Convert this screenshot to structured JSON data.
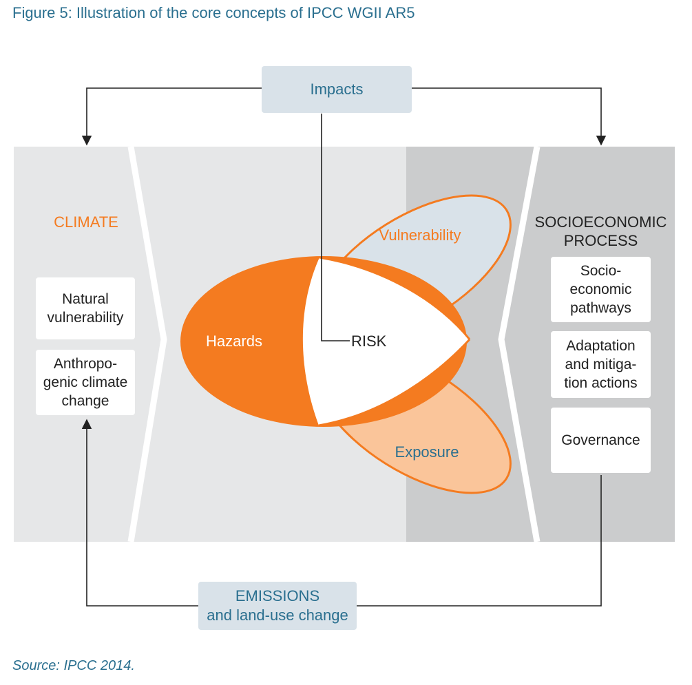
{
  "figure_title": "Figure 5: Illustration of the core concepts of IPCC WGII AR5",
  "impacts_label": "Impacts",
  "climate": {
    "heading": "CLIMATE",
    "items": [
      "Natural\nvulnerability",
      "Anthropo-\ngenic climate\nchange"
    ]
  },
  "socio": {
    "heading": "SOCIOECONOMIC\nPROCESS",
    "items": [
      "Socio-\neconomic\npathways",
      "Adaptation\nand mitiga-\ntion actions",
      "Governance"
    ]
  },
  "risk_components": {
    "hazards": "Hazards",
    "vulnerability": "Vulnerability",
    "exposure": "Exposure",
    "risk": "RISK"
  },
  "emissions": {
    "line1": "EMISSIONS",
    "line2": "and land-use change"
  },
  "source": "Source: IPCC 2014.",
  "colors": {
    "orange": "#f47b20",
    "light_orange": "#fac59a",
    "light_blue": "#d9e2e9",
    "panel_light": "#e6e7e8",
    "panel_dark": "#cbcccd",
    "text_blue": "#2a6f8f"
  }
}
